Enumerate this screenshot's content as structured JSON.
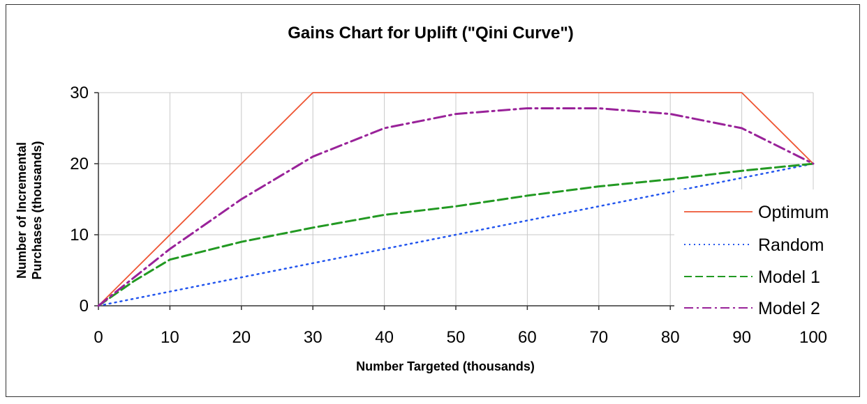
{
  "chart_data": {
    "type": "line",
    "title": "Gains Chart for Uplift (\"Qini Curve\")",
    "xlabel": "Number Targeted (thousands)",
    "ylabel_lines": [
      "Number of Incremental",
      "Purchases (thousands)"
    ],
    "xlim": [
      0,
      100
    ],
    "ylim": [
      0,
      30
    ],
    "x_ticks": [
      0,
      10,
      20,
      30,
      40,
      50,
      60,
      70,
      80,
      90,
      100
    ],
    "y_ticks": [
      0,
      10,
      20,
      30
    ],
    "grid": true,
    "legend_position": "right",
    "series": [
      {
        "name": "Optimum",
        "color": "#ee5533",
        "style": "solid",
        "x": [
          0,
          30,
          90,
          100
        ],
        "y": [
          0,
          30,
          30,
          20
        ]
      },
      {
        "name": "Random",
        "color": "#2255ee",
        "style": "dotted",
        "x": [
          0,
          100
        ],
        "y": [
          0,
          20
        ]
      },
      {
        "name": "Model 1",
        "color": "#229922",
        "style": "dashed",
        "x": [
          0,
          5,
          10,
          20,
          30,
          40,
          50,
          60,
          70,
          80,
          90,
          100
        ],
        "y": [
          0,
          3.5,
          6.5,
          9,
          11,
          12.8,
          14,
          15.5,
          16.8,
          17.8,
          19,
          20
        ]
      },
      {
        "name": "Model 2",
        "color": "#992299",
        "style": "dashdot",
        "x": [
          0,
          5,
          10,
          20,
          30,
          40,
          45,
          50,
          60,
          70,
          80,
          90,
          100
        ],
        "y": [
          0,
          4,
          8,
          15,
          21,
          25,
          26,
          27,
          27.8,
          27.8,
          27,
          25,
          20
        ]
      }
    ]
  }
}
